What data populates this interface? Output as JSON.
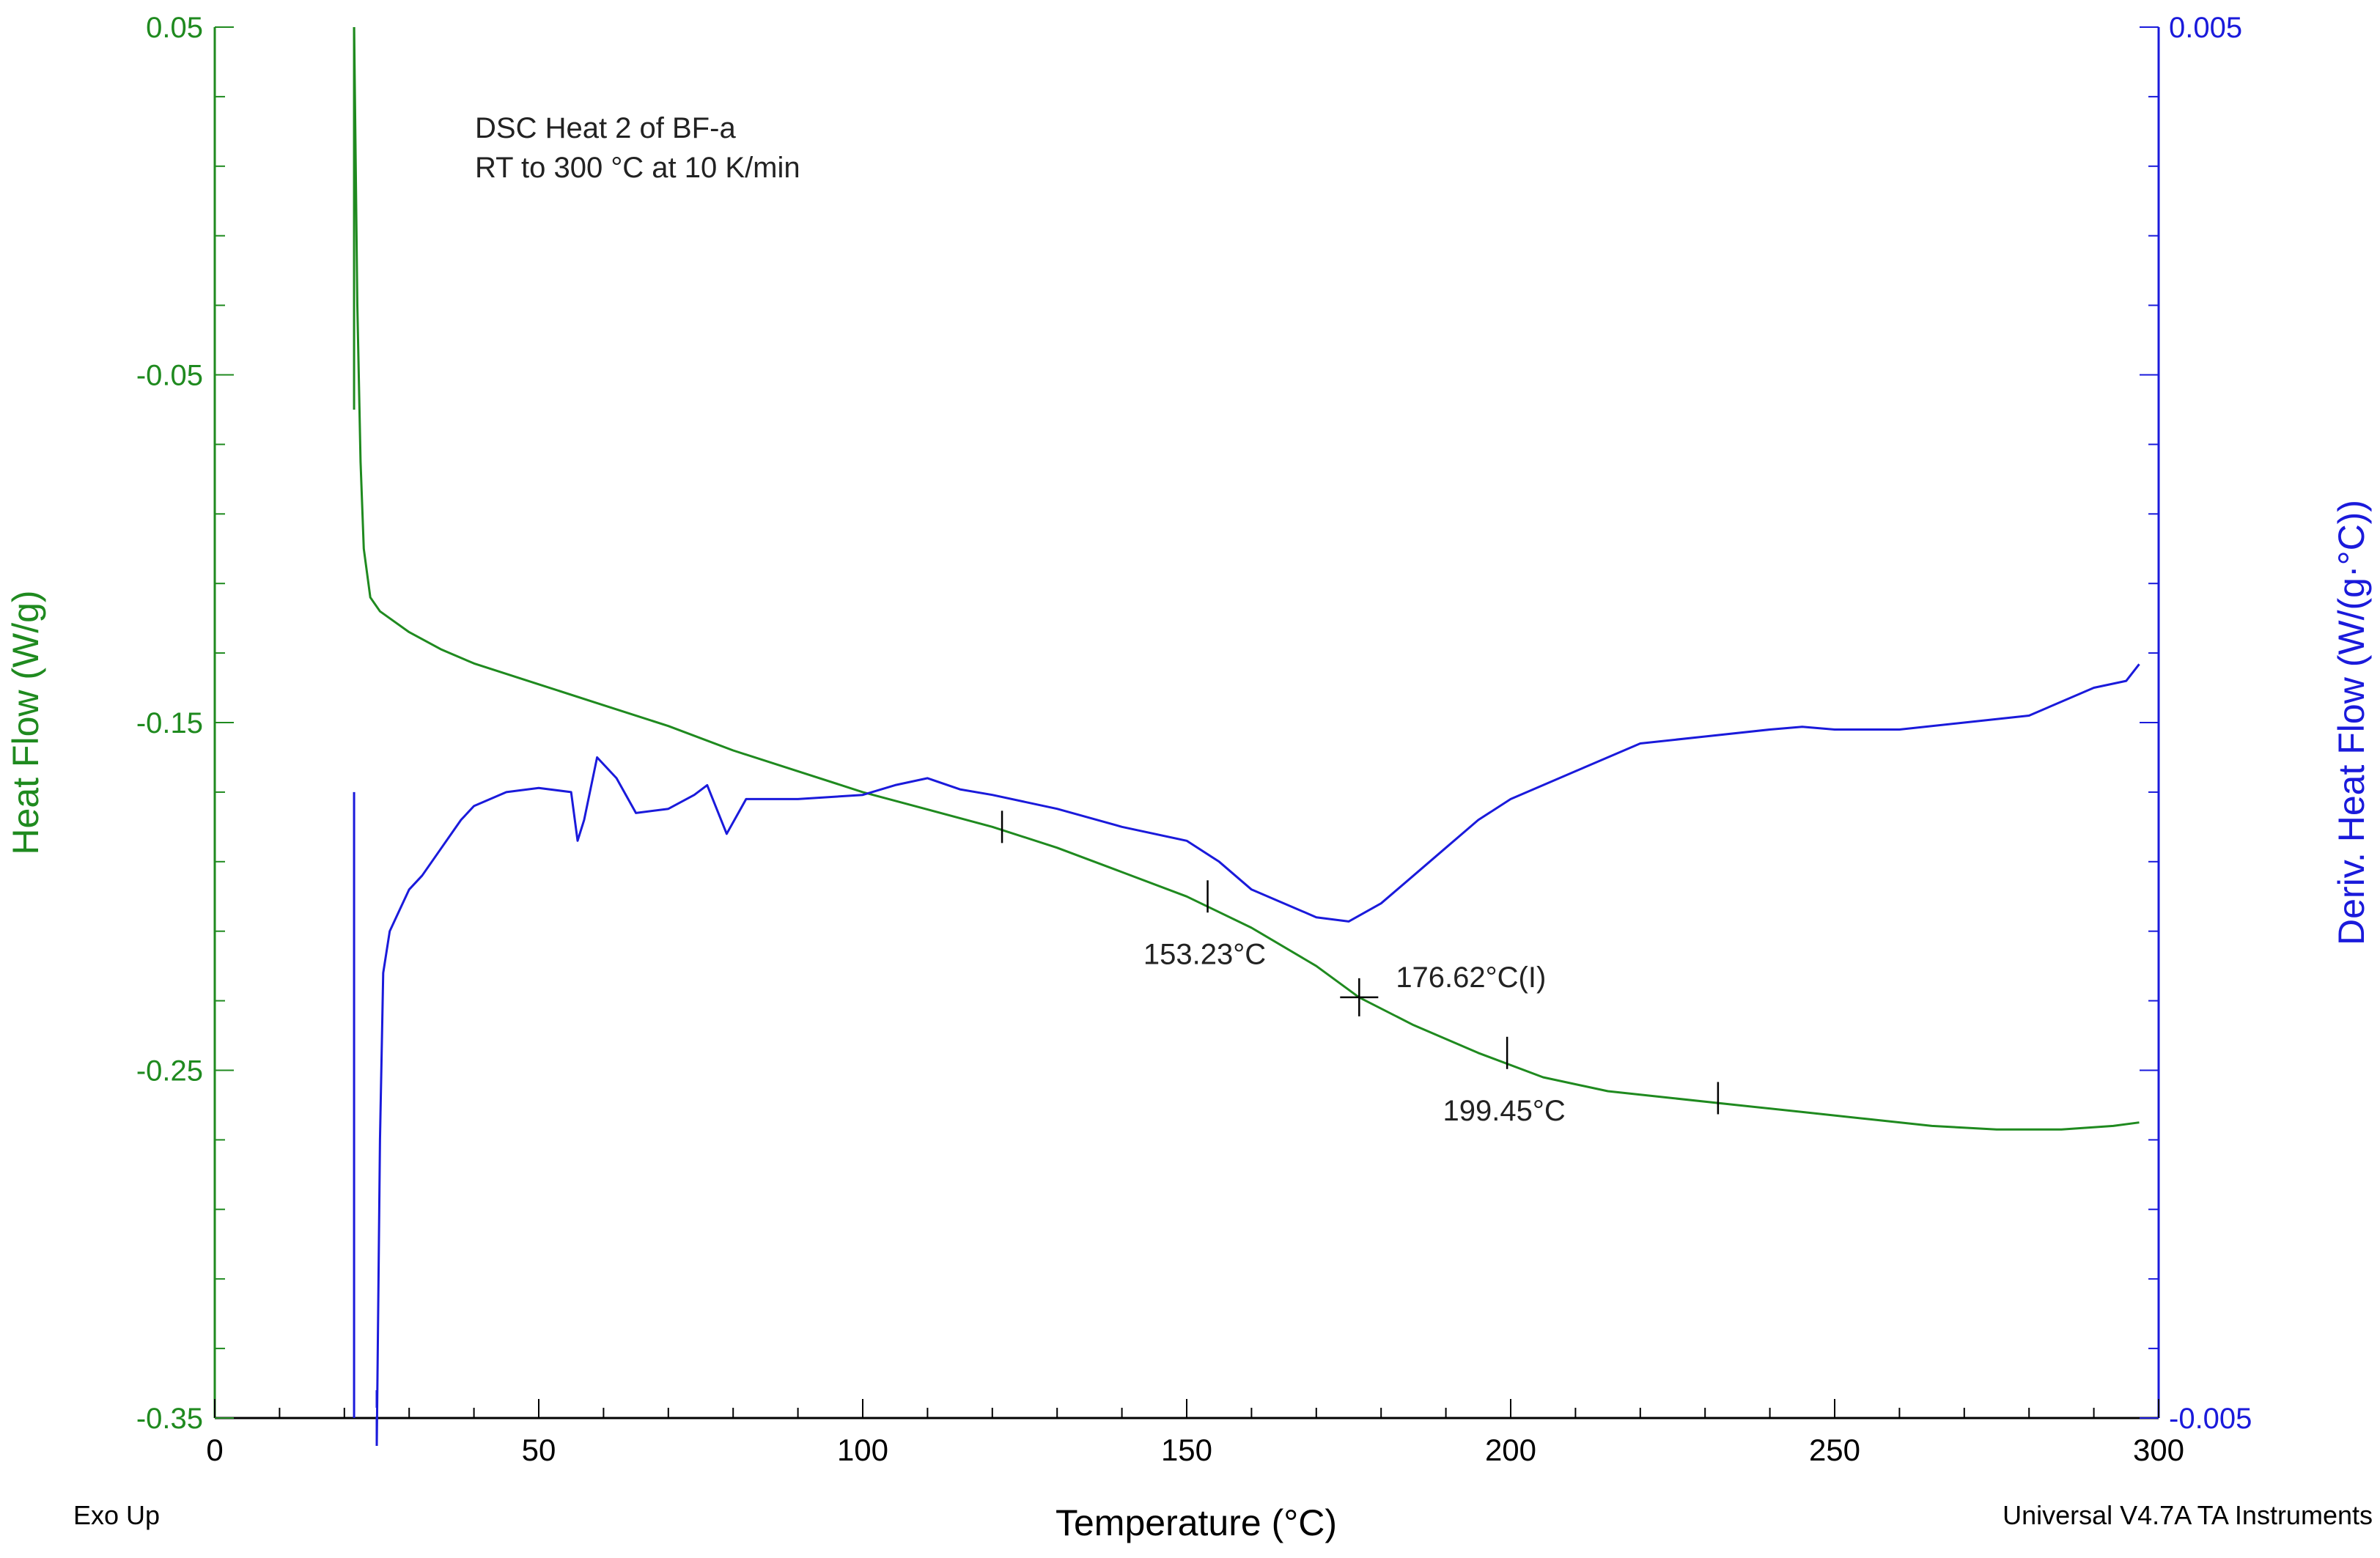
{
  "chart_data": {
    "type": "line",
    "title_lines": [
      "DSC Heat 2 of BF-a",
      "RT to 300 °C at 10 K/min"
    ],
    "xlabel": "Temperature (°C)",
    "ylabel_left": "Heat Flow (W/g)",
    "ylabel_right": "Deriv. Heat Flow (W/(g·°C))",
    "xlim": [
      0,
      300
    ],
    "ylim_left": [
      -0.35,
      0.05
    ],
    "ylim_right": [
      -0.005,
      0.005
    ],
    "x_ticks": [
      "0",
      "50",
      "100",
      "150",
      "200",
      "250",
      "300"
    ],
    "y_left_ticks": [
      "0.05",
      "-0.05",
      "-0.15",
      "-0.25",
      "-0.35"
    ],
    "y_right_ticks": [
      "0.005",
      "-0.005"
    ],
    "series": [
      {
        "name": "Heat Flow",
        "axis": "left",
        "color": "#1f8a1f",
        "x": [
          21.5,
          22.0,
          22.5,
          23.0,
          24.0,
          25.5,
          27.0,
          30,
          35,
          40,
          50,
          60,
          70,
          80,
          90,
          100,
          110,
          120,
          130,
          140,
          150,
          160,
          170,
          176.6,
          185,
          195,
          205,
          215,
          225,
          235,
          245,
          255,
          265,
          275,
          285,
          293,
          297
        ],
        "values": [
          0.05,
          -0.03,
          -0.075,
          -0.1,
          -0.114,
          -0.118,
          -0.12,
          -0.124,
          -0.129,
          -0.133,
          -0.139,
          -0.145,
          -0.151,
          -0.158,
          -0.164,
          -0.17,
          -0.175,
          -0.18,
          -0.186,
          -0.193,
          -0.2,
          -0.209,
          -0.22,
          -0.229,
          -0.237,
          -0.245,
          -0.252,
          -0.256,
          -0.258,
          -0.26,
          -0.262,
          -0.264,
          -0.266,
          -0.267,
          -0.267,
          -0.266,
          -0.265
        ]
      },
      {
        "name": "Deriv. Heat Flow",
        "axis": "right",
        "color": "#1a1adb",
        "x": [
          25.0,
          25.5,
          26.0,
          27,
          28,
          30,
          32,
          35,
          38,
          40,
          45,
          50,
          55,
          56,
          57,
          59,
          62,
          65,
          70,
          74,
          76,
          79,
          82,
          90,
          100,
          105,
          110,
          115,
          120,
          130,
          140,
          150,
          155,
          160,
          165,
          170,
          175,
          180,
          185,
          190,
          195,
          200,
          210,
          220,
          230,
          240,
          245,
          250,
          260,
          270,
          280,
          290,
          295,
          297
        ],
        "values": [
          -0.0052,
          -0.003,
          -0.0018,
          -0.0015,
          -0.0014,
          -0.0012,
          -0.0011,
          -0.0009,
          -0.0007,
          -0.0006,
          -0.0005,
          -0.00047,
          -0.0005,
          -0.00085,
          -0.0007,
          -0.00025,
          -0.0004,
          -0.00065,
          -0.00062,
          -0.00052,
          -0.00045,
          -0.0008,
          -0.00055,
          -0.00055,
          -0.00052,
          -0.00045,
          -0.0004,
          -0.00048,
          -0.00052,
          -0.00062,
          -0.00075,
          -0.00085,
          -0.001,
          -0.0012,
          -0.0013,
          -0.0014,
          -0.00143,
          -0.0013,
          -0.0011,
          -0.0009,
          -0.0007,
          -0.00055,
          -0.00035,
          -0.00015,
          -0.0001,
          -5e-05,
          -3e-05,
          -5e-05,
          -5e-05,
          0.0,
          5e-05,
          0.00025,
          0.0003,
          0.00042
        ]
      }
    ],
    "annotations": [
      {
        "label": "153.23°C",
        "x": 153.23,
        "y": -0.2,
        "type": "tick"
      },
      {
        "label": "176.62°C(I)",
        "x": 176.62,
        "y": -0.229,
        "type": "cross"
      },
      {
        "label": "199.45°C",
        "x": 199.45,
        "y": -0.245,
        "type": "tick"
      }
    ],
    "extra_marks": [
      {
        "x": 121.5,
        "y": -0.18,
        "type": "tick"
      },
      {
        "x": 232.0,
        "y": -0.258,
        "type": "tick"
      }
    ],
    "vertical_drops": [
      {
        "axis": "left",
        "x": 21.5,
        "from": 0.05,
        "to": -0.06
      },
      {
        "axis": "right",
        "x": 21.5,
        "from": -0.0005,
        "to": -0.005
      },
      {
        "axis": "right",
        "x": 25.0,
        "from": -0.0052,
        "to": -0.0048
      }
    ],
    "corner_left": "Exo Up",
    "corner_right": "Universal V4.7A TA Instruments"
  }
}
